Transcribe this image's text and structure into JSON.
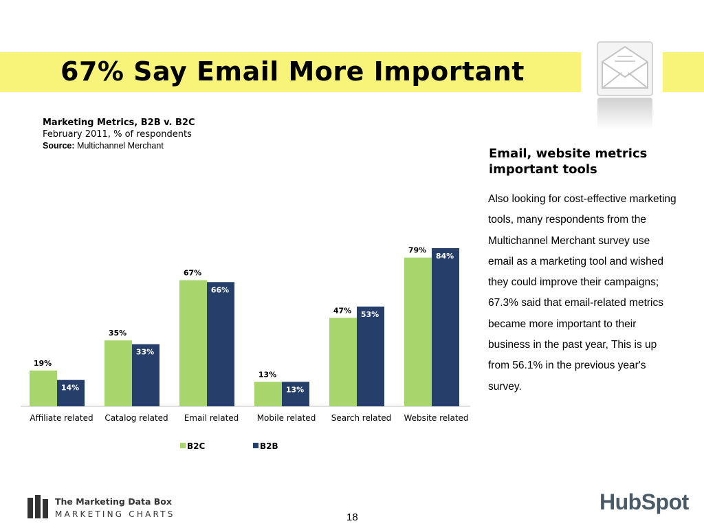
{
  "header": {
    "title": "67% Say Email More Important"
  },
  "chart_header": {
    "title": "Marketing Metrics, B2B v. B2C",
    "subtitle": "February 2011, % of respondents",
    "source_label": "Source:",
    "source_value": "Multichannel Merchant"
  },
  "sidebar": {
    "heading": "Email, website metrics important tools",
    "body": "Also looking for cost-effective marketing tools, many respondents from the Multichannel Merchant survey use email as a marketing tool and wished they could improve their campaigns; 67.3% said that email-related metrics became more important to their business in the past year, This is up from 56.1% in the previous year's survey."
  },
  "footer": {
    "brand_line1": "The Marketing Data Box",
    "brand_line2": "MARKETING CHARTS",
    "page_number": "18",
    "logo_text": "HubSpot"
  },
  "colors": {
    "title_bar": "#f8f47a",
    "b2c": "#a8d66c",
    "b2b": "#253f6a"
  },
  "icons": [
    "envelope-icon",
    "hubspot-logo",
    "marketing-charts-logo"
  ],
  "chart_data": {
    "type": "bar",
    "categories": [
      "Affiliate related",
      "Catalog related",
      "Email related",
      "Mobile related",
      "Search related",
      "Website related"
    ],
    "series": [
      {
        "name": "B2C",
        "values": [
          19,
          35,
          67,
          13,
          47,
          79
        ],
        "labels": [
          "19%",
          "35%",
          "67%",
          "13%",
          "47%",
          "79%"
        ]
      },
      {
        "name": "B2B",
        "values": [
          14,
          33,
          66,
          13,
          53,
          84
        ],
        "labels": [
          "14%",
          "33%",
          "66%",
          "13%",
          "53%",
          "84%"
        ]
      }
    ],
    "ylim": [
      0,
      84
    ],
    "grid": false,
    "legend_position": "bottom"
  }
}
